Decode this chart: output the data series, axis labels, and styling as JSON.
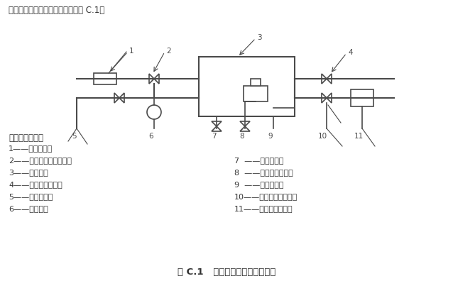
{
  "title_top": "真空舱气密性试验系统原理图见图 C.1。",
  "caption": "图 C.1   真空舱气密性试验原理图",
  "bg_color": "#ffffff",
  "line_color": "#4a4a4a",
  "legend_header": "标引序号说明：",
  "legend_items_left": [
    "1——标准漏孔；",
    "2——标准漏孔前端阀门；",
    "3——真空舱；",
    "4——置换气体出口；",
    "5——增压管路；",
    "6——压力表；"
  ],
  "legend_items_right": [
    "7  ——排气管路；",
    "8  ——置换气体入口；",
    "9  ——组合阀门；",
    "10——检漏仪前端阀门；",
    "11——氦质谱检漏仪。"
  ]
}
